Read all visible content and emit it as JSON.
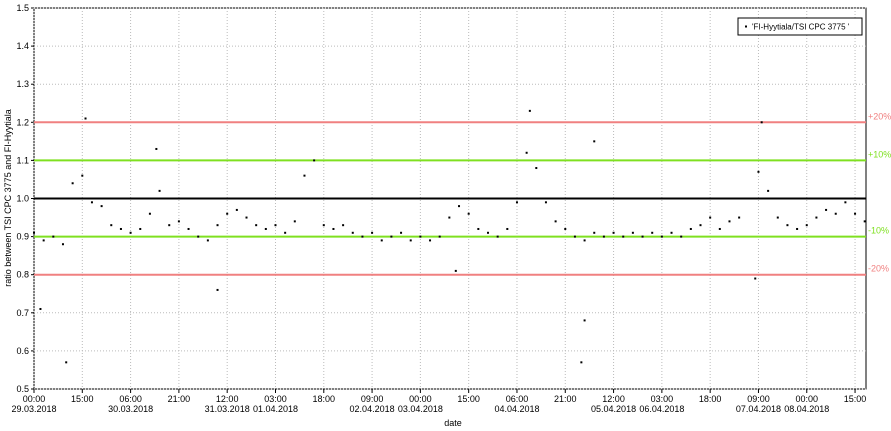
{
  "chart_data": {
    "type": "scatter",
    "x_label": "date",
    "y_label": "ratio between TSI CPC 3775 and FI-Hyytiala",
    "legend_position": "upper right",
    "grid": true,
    "ylim": [
      0.5,
      1.5
    ],
    "yticks": [
      0.5,
      0.6,
      0.7,
      0.8,
      0.9,
      {
        "value": 1,
        "label": "1.0"
      },
      1.1,
      1.2,
      1.3,
      1.4,
      1.5
    ],
    "xlim": [
      "2018-03-29T00:00",
      "2018-04-08T18:24"
    ],
    "xticks": [
      {
        "value": "2018-03-29T00:00",
        "label": "00:00",
        "date_label": "29.03.2018"
      },
      {
        "value": "2018-03-29T15:00",
        "label": "15:00"
      },
      {
        "value": "2018-03-30T06:00",
        "label": "06:00",
        "date_label": "30.03.2018"
      },
      {
        "value": "2018-03-30T21:00",
        "label": "21:00"
      },
      {
        "value": "2018-03-31T12:00",
        "label": "12:00",
        "date_label": "31.03.2018"
      },
      {
        "value": "2018-04-01T03:00",
        "label": "03:00",
        "date_label": "01.04.2018"
      },
      {
        "value": "2018-04-01T18:00",
        "label": "18:00"
      },
      {
        "value": "2018-04-02T09:00",
        "label": "09:00",
        "date_label": "02.04.2018"
      },
      {
        "value": "2018-04-03T00:00",
        "label": "00:00",
        "date_label": "03.04.2018"
      },
      {
        "value": "2018-04-03T15:00",
        "label": "15:00"
      },
      {
        "value": "2018-04-04T06:00",
        "label": "06:00",
        "date_label": "04.04.2018"
      },
      {
        "value": "2018-04-04T21:00",
        "label": "21:00"
      },
      {
        "value": "2018-04-05T12:00",
        "label": "12:00",
        "date_label": "05.04.2018"
      },
      {
        "value": "2018-04-06T03:00",
        "label": "03:00",
        "date_label": "06.04.2018"
      },
      {
        "value": "2018-04-06T18:00",
        "label": "18:00"
      },
      {
        "value": "2018-04-07T09:00",
        "label": "09:00",
        "date_label": "07.04.2018"
      },
      {
        "value": "2018-04-08T00:00",
        "label": "00:00",
        "date_label": "08.04.2018"
      },
      {
        "value": "2018-04-08T15:00",
        "label": "15:00"
      }
    ],
    "reference_lines": [
      {
        "value": 1.2,
        "color": "#f08080",
        "label": "+20%"
      },
      {
        "value": 1.1,
        "color": "#7fe020",
        "label": "+10%"
      },
      {
        "value": 1,
        "color": "#000000"
      },
      {
        "value": 0.9,
        "color": "#7fe020",
        "label": "-10%"
      },
      {
        "value": 0.8,
        "color": "#f08080",
        "label": "-20%"
      }
    ],
    "series": [
      {
        "name": "'FI-Hyytiala/TSI CPC 3775 '",
        "color": "#000000",
        "x": [
          "2018-03-29T00:00",
          "2018-03-29T03:00",
          "2018-03-29T06:00",
          "2018-03-29T09:00",
          "2018-03-29T12:00",
          "2018-03-29T15:00",
          "2018-03-29T18:00",
          "2018-03-29T21:00",
          "2018-03-30T00:00",
          "2018-03-30T03:00",
          "2018-03-30T06:00",
          "2018-03-30T09:00",
          "2018-03-30T12:00",
          "2018-03-30T15:00",
          "2018-03-30T18:00",
          "2018-03-30T21:00",
          "2018-03-31T00:00",
          "2018-03-31T03:00",
          "2018-03-31T06:00",
          "2018-03-31T09:00",
          "2018-03-31T12:00",
          "2018-03-31T15:00",
          "2018-03-31T18:00",
          "2018-03-31T21:00",
          "2018-04-01T00:00",
          "2018-04-01T03:00",
          "2018-04-01T06:00",
          "2018-04-01T09:00",
          "2018-04-01T12:00",
          "2018-04-01T15:00",
          "2018-04-01T18:00",
          "2018-04-01T21:00",
          "2018-04-02T00:00",
          "2018-04-02T03:00",
          "2018-04-02T06:00",
          "2018-04-02T09:00",
          "2018-04-02T12:00",
          "2018-04-02T15:00",
          "2018-04-02T18:00",
          "2018-04-02T21:00",
          "2018-04-03T00:00",
          "2018-04-03T03:00",
          "2018-04-03T06:00",
          "2018-04-03T09:00",
          "2018-04-03T12:00",
          "2018-04-03T15:00",
          "2018-04-03T18:00",
          "2018-04-03T21:00",
          "2018-04-04T00:00",
          "2018-04-04T03:00",
          "2018-04-04T06:00",
          "2018-04-04T09:00",
          "2018-04-04T12:00",
          "2018-04-04T15:00",
          "2018-04-04T18:00",
          "2018-04-04T21:00",
          "2018-04-05T00:00",
          "2018-04-05T03:00",
          "2018-04-05T06:00",
          "2018-04-05T09:00",
          "2018-04-05T12:00",
          "2018-04-05T15:00",
          "2018-04-05T18:00",
          "2018-04-05T21:00",
          "2018-04-06T00:00",
          "2018-04-06T03:00",
          "2018-04-06T06:00",
          "2018-04-06T09:00",
          "2018-04-06T12:00",
          "2018-04-06T15:00",
          "2018-04-06T18:00",
          "2018-04-06T21:00",
          "2018-04-07T00:00",
          "2018-04-07T03:00",
          "2018-04-07T06:00",
          "2018-04-07T09:00",
          "2018-04-07T12:00",
          "2018-04-07T15:00",
          "2018-04-07T18:00",
          "2018-04-07T21:00",
          "2018-04-08T00:00",
          "2018-04-08T03:00",
          "2018-04-08T06:00",
          "2018-04-08T09:00",
          "2018-04-08T12:00",
          "2018-04-08T15:00",
          "2018-04-08T18:00",
          "2018-03-29T02:00",
          "2018-03-29T10:00",
          "2018-03-29T16:00",
          "2018-03-30T14:00",
          "2018-03-31T09:00",
          "2018-04-03T11:00",
          "2018-04-04T10:00",
          "2018-04-05T02:00",
          "2018-04-05T03:00",
          "2018-04-05T06:00",
          "2018-04-07T08:00",
          "2018-04-07T10:00"
        ],
        "values": [
          0.91,
          0.89,
          0.9,
          0.88,
          1.04,
          1.06,
          0.99,
          0.98,
          0.93,
          0.92,
          0.91,
          0.92,
          0.96,
          1.02,
          0.93,
          0.94,
          0.92,
          0.9,
          0.89,
          0.93,
          0.96,
          0.97,
          0.95,
          0.93,
          0.92,
          0.93,
          0.91,
          0.94,
          1.06,
          1.1,
          0.93,
          0.92,
          0.93,
          0.91,
          0.9,
          0.91,
          0.89,
          0.9,
          0.91,
          0.89,
          0.9,
          0.89,
          0.9,
          0.95,
          0.98,
          0.96,
          0.92,
          0.91,
          0.9,
          0.92,
          0.99,
          1.12,
          1.08,
          0.99,
          0.94,
          0.92,
          0.9,
          0.89,
          0.91,
          0.9,
          0.91,
          0.9,
          0.91,
          0.9,
          0.91,
          0.9,
          0.91,
          0.9,
          0.92,
          0.93,
          0.95,
          0.92,
          0.94,
          0.95,
          1.0,
          1.07,
          1.02,
          0.95,
          0.93,
          0.92,
          0.93,
          0.95,
          0.97,
          0.96,
          0.99,
          0.96,
          0.94,
          0.71,
          0.57,
          1.21,
          1.13,
          0.76,
          0.81,
          1.23,
          0.57,
          0.68,
          1.15,
          0.79,
          1.2
        ]
      }
    ]
  }
}
